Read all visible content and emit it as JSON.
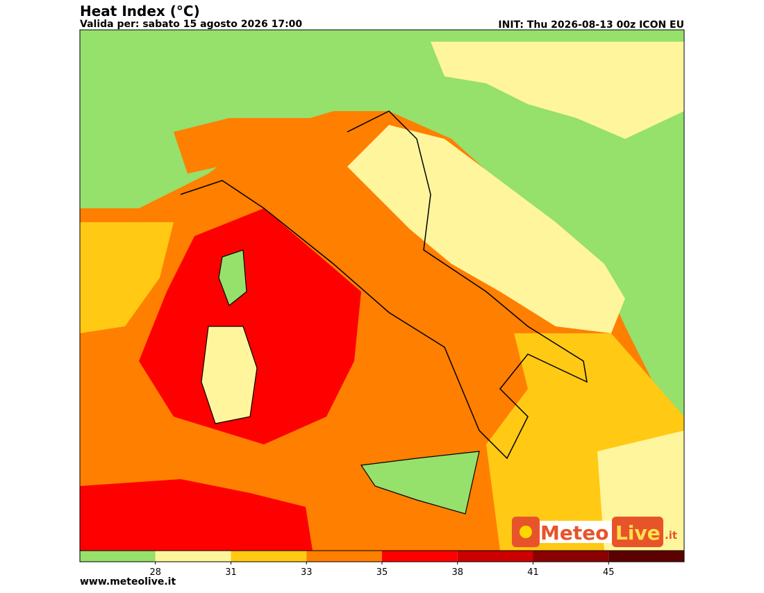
{
  "header": {
    "title": "Heat Index (°C)",
    "valid": "Valida per: sabato 15 agosto 2026 17:00",
    "init": "INIT: Thu 2026-08-13 00z ICON EU"
  },
  "colorbar": {
    "ticks": [
      28,
      31,
      33,
      35,
      38,
      41,
      45
    ],
    "colors": [
      "#96e06c",
      "#fff59d",
      "#ffc914",
      "#ff7f00",
      "#ff0000",
      "#cc0000",
      "#8b0000",
      "#5c0000"
    ]
  },
  "logo": {
    "part1": "Meteo",
    "part2": "Live",
    "suffix": ".it"
  },
  "footer": {
    "site": "www.meteolive.it"
  }
}
